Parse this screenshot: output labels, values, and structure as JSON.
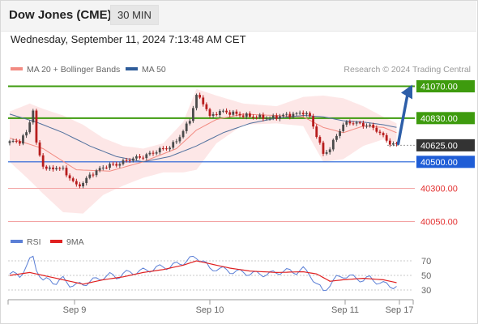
{
  "header": {
    "title": "Dow Jones (CME)",
    "timeframe": "30 MIN"
  },
  "datetime": "Wednesday, September 11, 2024 7:13:48 AM CET",
  "credit": "Research © 2024 Trading Central",
  "legend_main": [
    {
      "label": "MA 20 + Bollinger Bands",
      "color": "#f28b82"
    },
    {
      "label": "MA 50",
      "color": "#2e5c9a"
    }
  ],
  "legend_rsi": [
    {
      "label": "RSI",
      "color": "#5b7fd6"
    },
    {
      "label": "9MA",
      "color": "#e02020"
    }
  ],
  "chart_data": {
    "type": "candlestick",
    "price_range": [
      40010,
      41110
    ],
    "levels": [
      {
        "value": 41070,
        "label": "41070.00",
        "kind": "resistance",
        "color": "#3e9b0e"
      },
      {
        "value": 40830,
        "label": "40830.00",
        "kind": "resistance",
        "color": "#3e9b0e"
      },
      {
        "value": 40625,
        "label": "40625.00",
        "kind": "last",
        "color": "#333333"
      },
      {
        "value": 40500,
        "label": "40500.00",
        "kind": "pivot",
        "color": "#1f5dd6"
      },
      {
        "value": 40300,
        "label": "40300.00",
        "kind": "support",
        "color": "#e33030"
      },
      {
        "value": 40050,
        "label": "40050.00",
        "kind": "support",
        "color": "#e33030"
      }
    ],
    "x_ticks": [
      "Sep 9",
      "Sep 10",
      "Sep 11",
      "Sep 17"
    ],
    "projection": {
      "from": 40625,
      "to": 41070
    },
    "close_path": [
      [
        0,
        40650
      ],
      [
        3,
        40655
      ],
      [
        5,
        40720
      ],
      [
        6,
        40800
      ],
      [
        7,
        40900
      ],
      [
        8,
        40630
      ],
      [
        10,
        40470
      ],
      [
        12,
        40440
      ],
      [
        14,
        40460
      ],
      [
        16,
        40440
      ],
      [
        18,
        40380
      ],
      [
        20,
        40320
      ],
      [
        22,
        40340
      ],
      [
        24,
        40400
      ],
      [
        26,
        40430
      ],
      [
        28,
        40460
      ],
      [
        30,
        40475
      ],
      [
        32,
        40480
      ],
      [
        34,
        40500
      ],
      [
        36,
        40520
      ],
      [
        38,
        40530
      ],
      [
        40,
        40540
      ],
      [
        42,
        40560
      ],
      [
        44,
        40580
      ],
      [
        46,
        40600
      ],
      [
        48,
        40610
      ],
      [
        50,
        40660
      ],
      [
        52,
        40730
      ],
      [
        54,
        40820
      ],
      [
        56,
        41000
      ],
      [
        58,
        40950
      ],
      [
        60,
        40840
      ],
      [
        62,
        40870
      ],
      [
        64,
        40880
      ],
      [
        66,
        40870
      ],
      [
        70,
        40850
      ],
      [
        74,
        40840
      ],
      [
        78,
        40830
      ],
      [
        82,
        40850
      ],
      [
        86,
        40860
      ],
      [
        88,
        40875
      ],
      [
        90,
        40840
      ],
      [
        92,
        40700
      ],
      [
        94,
        40560
      ],
      [
        96,
        40600
      ],
      [
        98,
        40700
      ],
      [
        100,
        40780
      ],
      [
        102,
        40800
      ],
      [
        104,
        40790
      ],
      [
        106,
        40780
      ],
      [
        108,
        40770
      ],
      [
        110,
        40740
      ],
      [
        112,
        40690
      ],
      [
        114,
        40640
      ],
      [
        116,
        40625
      ]
    ],
    "ma20": [
      [
        0,
        40680
      ],
      [
        10,
        40600
      ],
      [
        20,
        40440
      ],
      [
        30,
        40430
      ],
      [
        40,
        40500
      ],
      [
        50,
        40600
      ],
      [
        56,
        40740
      ],
      [
        62,
        40820
      ],
      [
        70,
        40860
      ],
      [
        80,
        40850
      ],
      [
        88,
        40840
      ],
      [
        94,
        40760
      ],
      [
        100,
        40720
      ],
      [
        106,
        40770
      ],
      [
        112,
        40760
      ],
      [
        116,
        40720
      ]
    ],
    "bb_upper": [
      [
        0,
        40880
      ],
      [
        6,
        40940
      ],
      [
        10,
        40900
      ],
      [
        16,
        40850
      ],
      [
        22,
        40780
      ],
      [
        28,
        40680
      ],
      [
        34,
        40620
      ],
      [
        40,
        40600
      ],
      [
        46,
        40640
      ],
      [
        52,
        40800
      ],
      [
        56,
        41050
      ],
      [
        62,
        41000
      ],
      [
        70,
        40940
      ],
      [
        80,
        40920
      ],
      [
        88,
        40990
      ],
      [
        94,
        41000
      ],
      [
        100,
        40980
      ],
      [
        106,
        40920
      ],
      [
        112,
        40840
      ],
      [
        116,
        40790
      ]
    ],
    "bb_lower": [
      [
        0,
        40500
      ],
      [
        6,
        40360
      ],
      [
        10,
        40260
      ],
      [
        16,
        40120
      ],
      [
        22,
        40110
      ],
      [
        28,
        40250
      ],
      [
        34,
        40320
      ],
      [
        40,
        40380
      ],
      [
        46,
        40420
      ],
      [
        52,
        40420
      ],
      [
        56,
        40440
      ],
      [
        62,
        40640
      ],
      [
        70,
        40780
      ],
      [
        80,
        40790
      ],
      [
        88,
        40770
      ],
      [
        94,
        40500
      ],
      [
        100,
        40520
      ],
      [
        106,
        40620
      ],
      [
        112,
        40670
      ],
      [
        116,
        40640
      ]
    ],
    "ma50": [
      [
        0,
        40860
      ],
      [
        8,
        40800
      ],
      [
        16,
        40720
      ],
      [
        24,
        40620
      ],
      [
        32,
        40540
      ],
      [
        40,
        40500
      ],
      [
        48,
        40540
      ],
      [
        56,
        40620
      ],
      [
        64,
        40720
      ],
      [
        72,
        40790
      ],
      [
        80,
        40830
      ],
      [
        88,
        40850
      ],
      [
        94,
        40840
      ],
      [
        100,
        40810
      ],
      [
        106,
        40800
      ],
      [
        112,
        40780
      ],
      [
        116,
        40760
      ]
    ],
    "rsi": {
      "range": [
        20,
        80
      ],
      "ticks": [
        70,
        50,
        30
      ],
      "values": [
        [
          0,
          52
        ],
        [
          3,
          50
        ],
        [
          5,
          62
        ],
        [
          6,
          70
        ],
        [
          7,
          75
        ],
        [
          8,
          60
        ],
        [
          10,
          42
        ],
        [
          12,
          44
        ],
        [
          14,
          40
        ],
        [
          16,
          45
        ],
        [
          18,
          38
        ],
        [
          20,
          36
        ],
        [
          22,
          38
        ],
        [
          24,
          42
        ],
        [
          26,
          44
        ],
        [
          28,
          48
        ],
        [
          30,
          50
        ],
        [
          32,
          48
        ],
        [
          34,
          52
        ],
        [
          36,
          54
        ],
        [
          38,
          55
        ],
        [
          40,
          56
        ],
        [
          42,
          58
        ],
        [
          44,
          60
        ],
        [
          46,
          62
        ],
        [
          48,
          62
        ],
        [
          50,
          65
        ],
        [
          52,
          68
        ],
        [
          54,
          72
        ],
        [
          56,
          75
        ],
        [
          58,
          70
        ],
        [
          60,
          58
        ],
        [
          62,
          60
        ],
        [
          64,
          58
        ],
        [
          66,
          56
        ],
        [
          70,
          54
        ],
        [
          74,
          52
        ],
        [
          78,
          52
        ],
        [
          82,
          56
        ],
        [
          86,
          55
        ],
        [
          88,
          58
        ],
        [
          90,
          52
        ],
        [
          92,
          38
        ],
        [
          94,
          28
        ],
        [
          96,
          38
        ],
        [
          98,
          46
        ],
        [
          100,
          50
        ],
        [
          102,
          48
        ],
        [
          104,
          46
        ],
        [
          106,
          44
        ],
        [
          108,
          46
        ],
        [
          110,
          42
        ],
        [
          112,
          38
        ],
        [
          114,
          36
        ],
        [
          116,
          35
        ]
      ],
      "ma9": [
        [
          0,
          50
        ],
        [
          6,
          54
        ],
        [
          10,
          50
        ],
        [
          16,
          44
        ],
        [
          22,
          38
        ],
        [
          28,
          44
        ],
        [
          34,
          48
        ],
        [
          40,
          54
        ],
        [
          46,
          58
        ],
        [
          52,
          64
        ],
        [
          56,
          70
        ],
        [
          60,
          66
        ],
        [
          66,
          60
        ],
        [
          72,
          56
        ],
        [
          80,
          54
        ],
        [
          88,
          55
        ],
        [
          92,
          52
        ],
        [
          96,
          42
        ],
        [
          100,
          44
        ],
        [
          106,
          46
        ],
        [
          112,
          44
        ],
        [
          116,
          40
        ]
      ]
    }
  }
}
